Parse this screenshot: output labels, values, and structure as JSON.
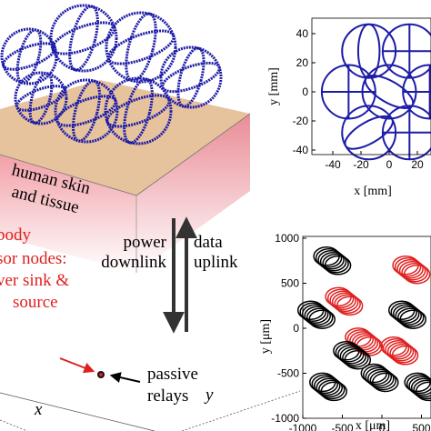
{
  "illustration": {
    "skin_label": [
      "human skin",
      "and tissue"
    ],
    "downlink_label": [
      "power",
      "downlink"
    ],
    "uplink_label": [
      "data",
      "uplink"
    ],
    "sensor_label": [
      "body",
      "sor nodes:",
      "ver sink &",
      "source"
    ],
    "relay_label": [
      "passive",
      "relays"
    ],
    "axis_x": "x",
    "axis_y": "y"
  },
  "plot_mm": {
    "xlabel": "x [mm]",
    "ylabel": "y [mm]",
    "xticks": [
      -40,
      -20,
      0,
      20
    ],
    "yticks": [
      -40,
      -20,
      0,
      20,
      40
    ]
  },
  "plot_um": {
    "xlabel": "x [μm]",
    "ylabel": "y [μm]",
    "xticks": [
      -1000,
      -500,
      0,
      500
    ],
    "yticks": [
      -1000,
      -500,
      0,
      500,
      1000
    ]
  }
}
